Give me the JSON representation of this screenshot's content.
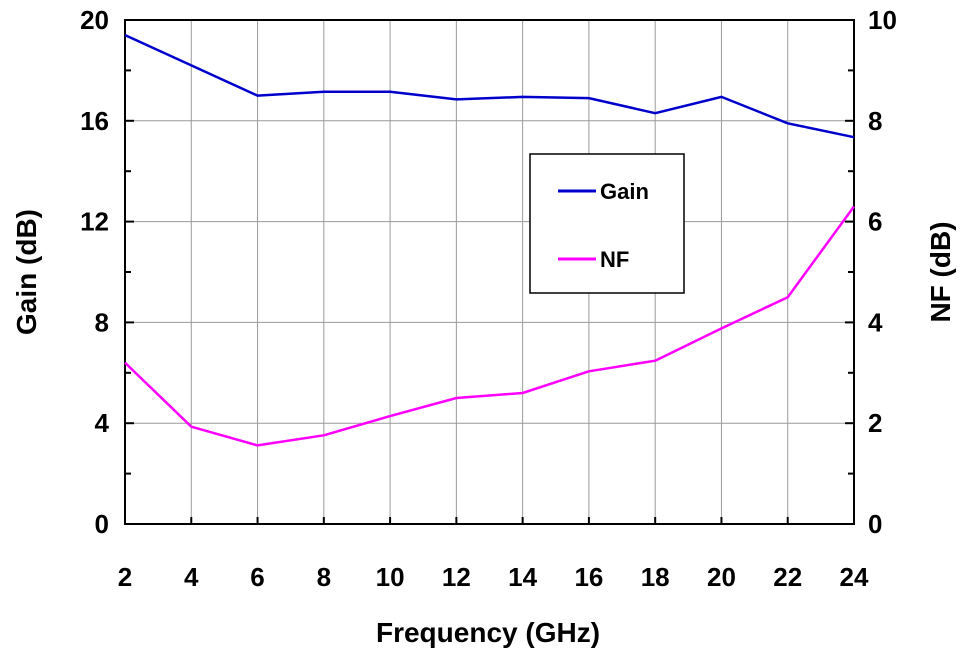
{
  "chart_data": {
    "type": "line",
    "title": "",
    "xlabel": "Frequency (GHz)",
    "ylabel": "Gain (dB)",
    "y2label": "NF (dB)",
    "x": [
      2,
      4,
      6,
      8,
      10,
      12,
      14,
      16,
      18,
      20,
      22,
      24
    ],
    "xlim": [
      2,
      24
    ],
    "ylim": [
      0,
      20
    ],
    "y2lim": [
      0,
      10
    ],
    "x_ticks": [
      "2",
      "4",
      "6",
      "8",
      "10",
      "12",
      "14",
      "16",
      "18",
      "20",
      "22",
      "24"
    ],
    "y_ticks": [
      "0",
      "4",
      "8",
      "12",
      "16",
      "20"
    ],
    "y2_ticks": [
      "0",
      "2",
      "4",
      "6",
      "8",
      "10"
    ],
    "grid": true,
    "legend_position": "center-right",
    "series": [
      {
        "name": "Gain",
        "axis": "left",
        "color": "#0000cc",
        "values": [
          19.4,
          18.2,
          17.0,
          17.15,
          17.15,
          16.85,
          16.95,
          16.9,
          16.3,
          16.95,
          15.9,
          15.35
        ]
      },
      {
        "name": "NF",
        "axis": "right",
        "color": "#ff00ff",
        "values": [
          3.2,
          1.93,
          1.56,
          1.76,
          2.14,
          2.5,
          2.6,
          3.03,
          3.24,
          3.88,
          4.5,
          6.3
        ]
      }
    ]
  }
}
